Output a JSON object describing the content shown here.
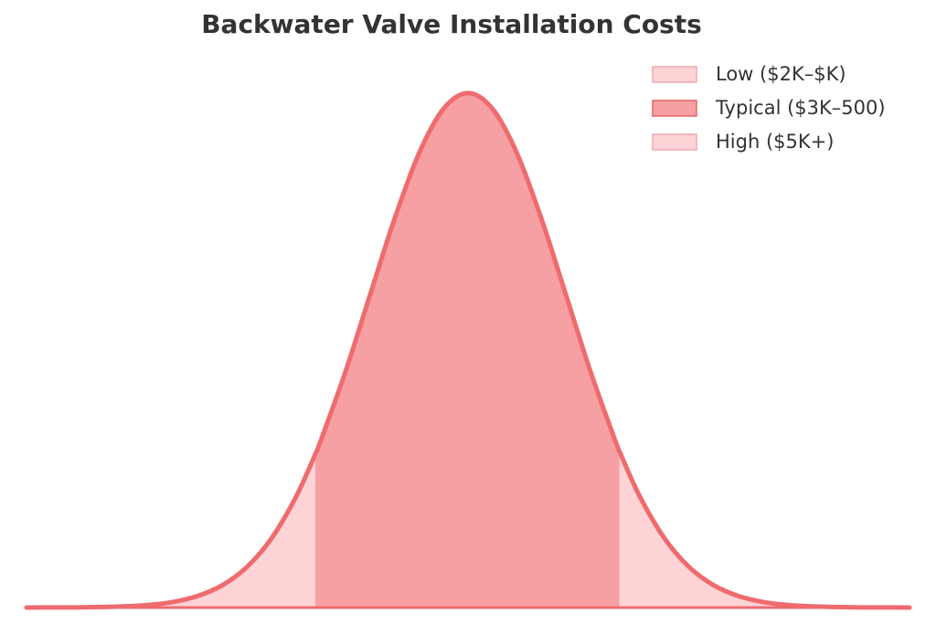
{
  "chart_data": {
    "type": "area",
    "title": "Backwater Valve Installation Costs",
    "xlim": [
      -4.5,
      4.5
    ],
    "ylim": [
      0,
      0.43
    ],
    "legend": "upper right",
    "line_color": "#ef6b6e",
    "series": [
      {
        "name": "Low ($2K–$K)",
        "color": "#fdd3d6",
        "x": [
          -4.5,
          -4.25,
          -4,
          -3.75,
          -3.5,
          -3.25,
          -3,
          -2.75,
          -2.5,
          -2.25,
          -2,
          -1.75,
          -1.55
        ],
        "values": [
          0.0,
          0.0001,
          0.0001,
          0.0004,
          0.0009,
          0.002,
          0.0044,
          0.0091,
          0.0175,
          0.0317,
          0.054,
          0.0863,
          0.12
        ]
      },
      {
        "name": "Typical ($3K–500)",
        "color": "#f7a0a3",
        "x": [
          -1.55,
          -1.5,
          -1.25,
          -1,
          -0.75,
          -0.5,
          -0.25,
          0,
          0.25,
          0.5,
          0.75,
          1,
          1.25,
          1.5,
          1.55
        ],
        "values": [
          0.12,
          0.1295,
          0.1826,
          0.242,
          0.3011,
          0.3521,
          0.3867,
          0.3989,
          0.3867,
          0.3521,
          0.3011,
          0.242,
          0.1826,
          0.1295,
          0.12
        ]
      },
      {
        "name": "High ($5K+)",
        "color": "#fdd3d6",
        "x": [
          1.55,
          1.75,
          2,
          2.25,
          2.5,
          2.75,
          3,
          3.25,
          3.5,
          3.75,
          4,
          4.25,
          4.5
        ],
        "values": [
          0.12,
          0.0863,
          0.054,
          0.0317,
          0.0175,
          0.0091,
          0.0044,
          0.002,
          0.0009,
          0.0004,
          0.0001,
          0.0001,
          0.0
        ]
      }
    ]
  }
}
